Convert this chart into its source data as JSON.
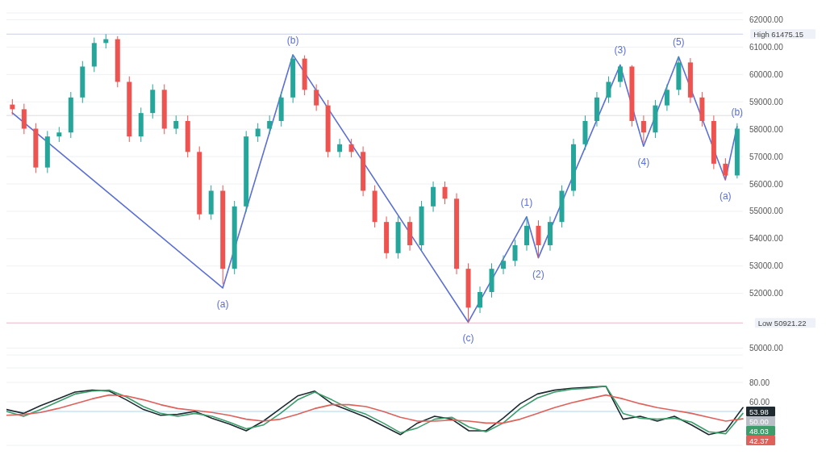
{
  "chart_data": [
    {
      "type": "candlestick",
      "categories": [
        null,
        null,
        null,
        null,
        null,
        null,
        null,
        null,
        null,
        null,
        null,
        null,
        null,
        null,
        null,
        null,
        null,
        null,
        null,
        null,
        null,
        null,
        null,
        null,
        null,
        null,
        null,
        null,
        null,
        null,
        null,
        null,
        null,
        null,
        null,
        null,
        null,
        null,
        null,
        null,
        null,
        null,
        null,
        null,
        null,
        null,
        null,
        null,
        null,
        null,
        null,
        null,
        null,
        null,
        null,
        null,
        null,
        null,
        null,
        null,
        null,
        null,
        null
      ],
      "ohlc": [
        [
          58900,
          59100,
          58530,
          58730
        ],
        [
          58730,
          58930,
          57820,
          58020
        ],
        [
          58020,
          58220,
          56400,
          56600
        ],
        [
          56600,
          57935,
          56400,
          57735
        ],
        [
          57735,
          58080,
          57535,
          57880
        ],
        [
          57880,
          59360,
          57680,
          59160
        ],
        [
          59160,
          60490,
          58960,
          60290
        ],
        [
          60290,
          61350,
          60090,
          61150
        ],
        [
          61150,
          61475.15,
          60950,
          61290
        ],
        [
          61290,
          61400,
          59530,
          59730
        ],
        [
          59730,
          59930,
          57535,
          57735
        ],
        [
          57735,
          58790,
          57535,
          58590
        ],
        [
          58590,
          59640,
          58390,
          59440
        ],
        [
          59440,
          59640,
          57820,
          58020
        ],
        [
          58020,
          58500,
          57820,
          58300
        ],
        [
          58300,
          58500,
          56970,
          57170
        ],
        [
          57170,
          57370,
          54690,
          54890
        ],
        [
          54890,
          55950,
          54690,
          55750
        ],
        [
          55750,
          55950,
          52330,
          52900
        ],
        [
          52900,
          55380,
          52700,
          55180
        ],
        [
          55180,
          57935,
          54980,
          57735
        ],
        [
          57735,
          58220,
          57535,
          58020
        ],
        [
          58020,
          58500,
          57820,
          58300
        ],
        [
          58300,
          59360,
          58100,
          59160
        ],
        [
          59160,
          60720,
          58960,
          60580
        ],
        [
          60580,
          60700,
          59240,
          59440
        ],
        [
          59440,
          59640,
          58670,
          58870
        ],
        [
          58870,
          59070,
          56970,
          57170
        ],
        [
          57170,
          57650,
          56970,
          57450
        ],
        [
          57450,
          57650,
          56970,
          57170
        ],
        [
          57170,
          57370,
          55550,
          55750
        ],
        [
          55750,
          55950,
          54410,
          54610
        ],
        [
          54610,
          54810,
          53270,
          53470
        ],
        [
          53470,
          54810,
          53270,
          54610
        ],
        [
          54610,
          54810,
          53560,
          53760
        ],
        [
          53760,
          55380,
          53560,
          55180
        ],
        [
          55180,
          56090,
          54980,
          55890
        ],
        [
          55890,
          56090,
          55260,
          55460
        ],
        [
          55460,
          55660,
          52700,
          52900
        ],
        [
          52900,
          53100,
          50921.22,
          51480
        ],
        [
          51480,
          52250,
          51280,
          52050
        ],
        [
          52050,
          53100,
          51850,
          52900
        ],
        [
          52900,
          53390,
          52700,
          53190
        ],
        [
          53190,
          53960,
          52990,
          53760
        ],
        [
          53760,
          54800,
          53560,
          54470
        ],
        [
          54470,
          54670,
          53300,
          53760
        ],
        [
          53760,
          54810,
          53560,
          54610
        ],
        [
          54610,
          55950,
          54410,
          55750
        ],
        [
          55750,
          57650,
          55550,
          57450
        ],
        [
          57450,
          58500,
          57250,
          58300
        ],
        [
          58300,
          59360,
          58100,
          59160
        ],
        [
          59160,
          59930,
          58960,
          59730
        ],
        [
          59730,
          60350,
          59530,
          60290
        ],
        [
          60290,
          60340,
          58100,
          58300
        ],
        [
          58300,
          58500,
          57500,
          57880
        ],
        [
          57880,
          59070,
          57680,
          58870
        ],
        [
          58870,
          59640,
          58670,
          59440
        ],
        [
          59440,
          60650,
          59240,
          60440
        ],
        [
          60440,
          60600,
          58960,
          59160
        ],
        [
          59160,
          59360,
          58100,
          58300
        ],
        [
          58300,
          58500,
          56540,
          56740
        ],
        [
          56740,
          56940,
          56150,
          56310
        ],
        [
          56310,
          58220,
          56200,
          58020
        ]
      ],
      "colors": [
        "#ef5350",
        "#ef5350",
        "#ef5350",
        "#26a69a",
        "#26a69a",
        "#26a69a",
        "#26a69a",
        "#26a69a",
        "#26a69a",
        "#ef5350",
        "#ef5350",
        "#26a69a",
        "#26a69a",
        "#ef5350",
        "#26a69a",
        "#ef5350",
        "#ef5350",
        "#26a69a",
        "#ef5350",
        "#26a69a",
        "#26a69a",
        "#26a69a",
        "#26a69a",
        "#26a69a",
        "#26a69a",
        "#ef5350",
        "#ef5350",
        "#ef5350",
        "#26a69a",
        "#ef5350",
        "#ef5350",
        "#ef5350",
        "#ef5350",
        "#26a69a",
        "#ef5350",
        "#26a69a",
        "#26a69a",
        "#ef5350",
        "#ef5350",
        "#ef5350",
        "#26a69a",
        "#26a69a",
        "#26a69a",
        "#26a69a",
        "#26a69a",
        "#ef5350",
        "#26a69a",
        "#26a69a",
        "#26a69a",
        "#26a69a",
        "#26a69a",
        "#26a69a",
        "#26a69a",
        "#ef5350",
        "#ef5350",
        "#26a69a",
        "#26a69a",
        "#26a69a",
        "#ef5350",
        "#ef5350",
        "#ef5350",
        "#ef5350",
        "#26a69a"
      ],
      "series": [
        {
          "type": "line",
          "color": "#5b6fd6",
          "values": [
            58600,
            null,
            null,
            null,
            null,
            null,
            null,
            null,
            null,
            null,
            null,
            null,
            null,
            null,
            null,
            null,
            null,
            null,
            52200,
            null,
            null,
            null,
            null,
            null,
            60720,
            null,
            null,
            null,
            null,
            null,
            null,
            null,
            null,
            null,
            null,
            null,
            null,
            null,
            null,
            50950,
            null,
            null,
            null,
            null,
            54800,
            53300,
            null,
            null,
            null,
            null,
            null,
            null,
            60350,
            null,
            57380,
            null,
            null,
            60650,
            null,
            null,
            null,
            56150,
            58100
          ],
          "name": null
        }
      ],
      "annotations": [
        "(a)",
        "(b)",
        "(c)",
        "(1)",
        "(2)",
        "(3)",
        "(4)",
        "(5)",
        "(a)",
        "(b)"
      ],
      "ylim": [
        49750,
        62250
      ],
      "yticks": [
        {
          "value": 62000,
          "label": "62000.00"
        },
        {
          "value": 61000,
          "label": "61000.00"
        },
        {
          "value": 60000,
          "label": "60000.00"
        },
        {
          "value": 59000,
          "label": "59000.00"
        },
        {
          "value": 58000,
          "label": "58000.00"
        },
        {
          "value": 57000,
          "label": "57000.00"
        },
        {
          "value": 56000,
          "label": "56000.00"
        },
        {
          "value": 55000,
          "label": "55000.00"
        },
        {
          "value": 54000,
          "label": "54000.00"
        },
        {
          "value": 53000,
          "label": "53000.00"
        },
        {
          "value": 52000,
          "label": "52000.00"
        },
        {
          "value": 50000,
          "label": "50000.00"
        }
      ],
      "ref_lines": [
        {
          "axis": "y",
          "value": 61475.15,
          "label": "High 61475.15",
          "color": "#c8cfe6"
        },
        {
          "axis": "y",
          "value": 50921.22,
          "label": "Low 50921.22",
          "color": "#e8b8c8"
        },
        {
          "axis": "y",
          "value": 58500,
          "color": "#dcdcdc"
        }
      ],
      "grid": "y",
      "tick_labels": "y"
    },
    {
      "type": "line",
      "categories": [
        null,
        null,
        null,
        null,
        null,
        null,
        null,
        null,
        null,
        null,
        null,
        null,
        null,
        null,
        null,
        null,
        null,
        null,
        null,
        null,
        null,
        null,
        null,
        null,
        null,
        null,
        null,
        null,
        null,
        null,
        null,
        null,
        null,
        null,
        null,
        null,
        null,
        null,
        null,
        null,
        null,
        null,
        null,
        null
      ],
      "series": [
        {
          "color": "#1f2a30",
          "values": [
            52,
            48,
            56,
            63,
            70,
            72,
            71,
            62,
            52,
            46,
            47,
            50,
            43,
            37,
            30,
            40,
            53,
            66,
            71,
            58,
            51,
            44,
            35,
            26,
            38,
            45,
            42,
            30,
            30,
            43,
            58,
            68,
            72,
            74,
            75,
            76,
            42,
            45,
            40,
            45,
            36,
            26,
            30,
            53.98
          ],
          "value_labels": [
            null,
            null,
            null,
            null,
            null,
            null,
            null,
            null,
            null,
            null,
            null,
            null,
            null,
            null,
            null,
            null,
            null,
            null,
            null,
            null,
            null,
            null,
            null,
            null,
            null,
            null,
            null,
            null,
            null,
            null,
            null,
            null,
            null,
            null,
            null,
            null,
            null,
            null,
            null,
            null,
            null,
            null,
            null,
            "53.98"
          ]
        },
        {
          "color": "#3a9d6a",
          "values": [
            50,
            45,
            52,
            60,
            68,
            71,
            72,
            65,
            55,
            48,
            45,
            48,
            45,
            39,
            32,
            36,
            48,
            62,
            70,
            62,
            53,
            47,
            38,
            28,
            33,
            42,
            44,
            34,
            29,
            38,
            53,
            64,
            70,
            73,
            74,
            76,
            48,
            43,
            42,
            43,
            39,
            29,
            27,
            48.03
          ],
          "value_labels": [
            null,
            null,
            null,
            null,
            null,
            null,
            null,
            null,
            null,
            null,
            null,
            null,
            null,
            null,
            null,
            null,
            null,
            null,
            null,
            null,
            null,
            null,
            null,
            null,
            null,
            null,
            null,
            null,
            null,
            null,
            null,
            null,
            null,
            null,
            null,
            null,
            null,
            null,
            null,
            null,
            null,
            null,
            null,
            "48.03"
          ]
        },
        {
          "color": "#e0605a",
          "values": [
            46,
            47,
            49,
            53,
            58,
            63,
            67,
            66,
            62,
            57,
            53,
            51,
            49,
            46,
            42,
            40,
            42,
            47,
            53,
            57,
            57,
            55,
            50,
            44,
            40,
            40,
            41,
            40,
            38,
            38,
            42,
            48,
            54,
            59,
            63,
            67,
            63,
            58,
            54,
            51,
            48,
            44,
            40,
            42.37
          ],
          "value_labels": [
            null,
            null,
            null,
            null,
            null,
            null,
            null,
            null,
            null,
            null,
            null,
            null,
            null,
            null,
            null,
            null,
            null,
            null,
            null,
            null,
            null,
            null,
            null,
            null,
            null,
            null,
            null,
            null,
            null,
            null,
            null,
            null,
            null,
            null,
            null,
            null,
            null,
            null,
            null,
            null,
            null,
            null,
            null,
            "42.37"
          ]
        }
      ],
      "ylim": [
        15,
        95
      ],
      "yticks": [
        {
          "value": 80,
          "label": "80.00"
        },
        {
          "value": 60,
          "label": "60.00"
        }
      ],
      "ref_lines": [
        {
          "axis": "y",
          "value": 50,
          "label": "50.00",
          "color": "#a8d8f0"
        }
      ],
      "grid": "y",
      "tick_labels": "y"
    }
  ]
}
